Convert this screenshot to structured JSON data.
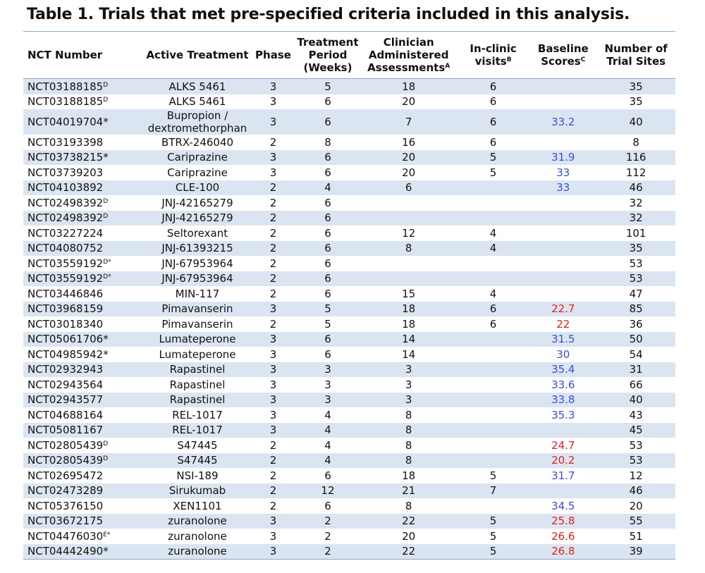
{
  "title": "Table 1. Trials that met pre-specified criteria included in this analysis.",
  "headers": [
    {
      "text": "NCT Number"
    },
    {
      "text": "Active Treatment"
    },
    {
      "text": "Phase"
    },
    {
      "text": "Treatment Period (Weeks)"
    },
    {
      "text": "Clinician Administered Assessments",
      "sup": "A"
    },
    {
      "text": "In-clinic visits",
      "sup": "B"
    },
    {
      "text": "Baseline Scores",
      "sup": "C"
    },
    {
      "text": "Number of Trial Sites"
    }
  ],
  "rows": [
    {
      "nct": "NCT03188185",
      "sup": "D",
      "treatment": "ALKS 5461",
      "phase": 3,
      "period": 5,
      "assessments": 18,
      "visits": 6,
      "sites": 35
    },
    {
      "nct": "NCT03188185",
      "sup": "D",
      "treatment": "ALKS 5461",
      "phase": 3,
      "period": 6,
      "assessments": 20,
      "visits": 6,
      "sites": 35
    },
    {
      "nct": "NCT04019704*",
      "treatment": "Bupropion / dextromethorphan",
      "phase": 3,
      "period": 6,
      "assessments": 7,
      "visits": 6,
      "baseline": 33.2,
      "baseline_color": "#3a4fd6",
      "sites": 40
    },
    {
      "nct": "NCT03193398",
      "treatment": "BTRX-246040",
      "phase": 2,
      "period": 8,
      "assessments": 16,
      "visits": 6,
      "sites": 8
    },
    {
      "nct": "NCT03738215*",
      "treatment": "Cariprazine",
      "phase": 3,
      "period": 6,
      "assessments": 20,
      "visits": 5,
      "baseline": 31.9,
      "baseline_color": "#3a4fd6",
      "sites": 116
    },
    {
      "nct": "NCT03739203",
      "treatment": "Cariprazine",
      "phase": 3,
      "period": 6,
      "assessments": 20,
      "visits": 5,
      "baseline": 33,
      "baseline_color": "#3a4fd6",
      "sites": 112
    },
    {
      "nct": "NCT04103892",
      "treatment": "CLE-100",
      "phase": 2,
      "period": 4,
      "assessments": 6,
      "baseline": 33,
      "baseline_color": "#3a4fd6",
      "sites": 46
    },
    {
      "nct": "NCT02498392",
      "sup": "D",
      "treatment": "JNJ-42165279",
      "phase": 2,
      "period": 6,
      "sites": 32
    },
    {
      "nct": "NCT02498392",
      "sup": "D",
      "treatment": "JNJ-42165279",
      "phase": 2,
      "period": 6,
      "sites": 32
    },
    {
      "nct": "NCT03227224",
      "treatment": "Seltorexant",
      "phase": 2,
      "period": 6,
      "assessments": 12,
      "visits": 4,
      "sites": 101
    },
    {
      "nct": "NCT04080752",
      "treatment": "JNJ-61393215",
      "phase": 2,
      "period": 6,
      "assessments": 8,
      "visits": 4,
      "sites": 35
    },
    {
      "nct": "NCT03559192",
      "sup": "D*",
      "treatment": "JNJ-67953964",
      "phase": 2,
      "period": 6,
      "sites": 53
    },
    {
      "nct": "NCT03559192",
      "sup": "D*",
      "treatment": "JNJ-67953964",
      "phase": 2,
      "period": 6,
      "sites": 53
    },
    {
      "nct": "NCT03446846",
      "treatment": "MIN-117",
      "phase": 2,
      "period": 6,
      "assessments": 15,
      "visits": 4,
      "sites": 47
    },
    {
      "nct": "NCT03968159",
      "treatment": "Pimavanserin",
      "phase": 3,
      "period": 5,
      "assessments": 18,
      "visits": 6,
      "baseline": 22.7,
      "baseline_color": "#e02020",
      "sites": 85
    },
    {
      "nct": "NCT03018340",
      "treatment": "Pimavanserin",
      "phase": 2,
      "period": 5,
      "assessments": 18,
      "visits": 6,
      "baseline": 22,
      "baseline_color": "#e02020",
      "sites": 36
    },
    {
      "nct": "NCT05061706*",
      "treatment": "Lumateperone",
      "phase": 3,
      "period": 6,
      "assessments": 14,
      "baseline": 31.5,
      "baseline_color": "#3a4fd6",
      "sites": 50
    },
    {
      "nct": "NCT04985942*",
      "treatment": "Lumateperone",
      "phase": 3,
      "period": 6,
      "assessments": 14,
      "baseline": 30,
      "baseline_color": "#3a4fd6",
      "sites": 54
    },
    {
      "nct": "NCT02932943",
      "treatment": "Rapastinel",
      "phase": 3,
      "period": 3,
      "assessments": 3,
      "baseline": 35.4,
      "baseline_color": "#3a4fd6",
      "sites": 31
    },
    {
      "nct": "NCT02943564",
      "treatment": "Rapastinel",
      "phase": 3,
      "period": 3,
      "assessments": 3,
      "baseline": 33.6,
      "baseline_color": "#3a4fd6",
      "sites": 66
    },
    {
      "nct": "NCT02943577",
      "treatment": "Rapastinel",
      "phase": 3,
      "period": 3,
      "assessments": 3,
      "baseline": 33.8,
      "baseline_color": "#3a4fd6",
      "sites": 40
    },
    {
      "nct": "NCT04688164",
      "treatment": "REL-1017",
      "phase": 3,
      "period": 4,
      "assessments": 8,
      "baseline": 35.3,
      "baseline_color": "#3a4fd6",
      "sites": 43
    },
    {
      "nct": "NCT05081167",
      "treatment": "REL-1017",
      "phase": 3,
      "period": 4,
      "assessments": 8,
      "sites": 45
    },
    {
      "nct": "NCT02805439",
      "sup": "D",
      "treatment": "S47445",
      "phase": 2,
      "period": 4,
      "assessments": 8,
      "baseline": 24.7,
      "baseline_color": "#e02020",
      "sites": 53
    },
    {
      "nct": "NCT02805439",
      "sup": "D",
      "treatment": "S47445",
      "phase": 2,
      "period": 4,
      "assessments": 8,
      "baseline": 20.2,
      "baseline_color": "#e02020",
      "sites": 53
    },
    {
      "nct": "NCT02695472",
      "treatment": "NSI-189",
      "phase": 2,
      "period": 6,
      "assessments": 18,
      "visits": 5,
      "baseline": 31.7,
      "baseline_color": "#3a4fd6",
      "sites": 12
    },
    {
      "nct": "NCT02473289",
      "treatment": "Sirukumab",
      "phase": 2,
      "period": 12,
      "assessments": 21,
      "visits": 7,
      "sites": 46
    },
    {
      "nct": "NCT05376150",
      "treatment": "XEN1101",
      "phase": 2,
      "period": 6,
      "assessments": 8,
      "baseline": 34.5,
      "baseline_color": "#3a4fd6",
      "sites": 20
    },
    {
      "nct": "NCT03672175",
      "treatment": "zuranolone",
      "phase": 3,
      "period": 2,
      "assessments": 22,
      "visits": 5,
      "baseline": 25.8,
      "baseline_color": "#e02020",
      "sites": 55
    },
    {
      "nct": "NCT04476030",
      "sup": "E*",
      "treatment": "zuranolone",
      "phase": 3,
      "period": 2,
      "assessments": 20,
      "visits": 5,
      "baseline": 26.6,
      "baseline_color": "#e02020",
      "sites": 51
    },
    {
      "nct": "NCT04442490*",
      "treatment": "zuranolone",
      "phase": 3,
      "period": 2,
      "assessments": 22,
      "visits": 5,
      "baseline": 26.8,
      "baseline_color": "#e02020",
      "sites": 39
    }
  ]
}
